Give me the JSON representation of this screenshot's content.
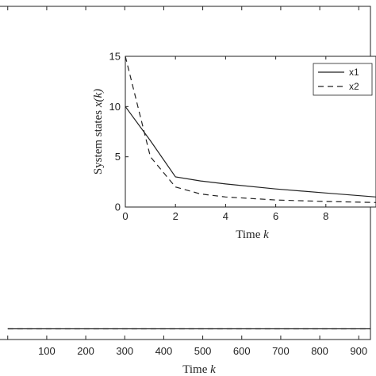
{
  "chart_data": [
    {
      "type": "line",
      "role": "main",
      "xlabel_text": "Time ",
      "xlabel_var": "k",
      "x_ticks": [
        100,
        200,
        300,
        400,
        500,
        600,
        700,
        800,
        900
      ],
      "x_tick_labels": [
        "100",
        "200",
        "300",
        "400",
        "500",
        "600",
        "700",
        "800",
        "900"
      ],
      "xlim": [
        -30,
        930
      ],
      "ylim": [
        -0.5,
        15
      ],
      "series": [
        {
          "x": [
            0,
            50,
            100,
            200,
            400,
            600,
            800,
            930
          ],
          "values": [
            0,
            0,
            0,
            0,
            0,
            0,
            0,
            0
          ],
          "style": "solid"
        },
        {
          "x": [
            0,
            50,
            100,
            200,
            400,
            600,
            800,
            930
          ],
          "values": [
            0,
            0,
            0,
            0,
            0,
            0,
            0,
            0
          ],
          "style": "dashed"
        }
      ]
    },
    {
      "type": "line",
      "role": "inset",
      "xlabel_text": "Time ",
      "xlabel_var": "k",
      "ylabel_text": "System states ",
      "ylabel_var": "x(k)",
      "x_ticks": [
        0,
        2,
        4,
        6,
        8
      ],
      "x_tick_labels": [
        "0",
        "2",
        "4",
        "6",
        "8"
      ],
      "y_ticks": [
        0,
        5,
        10,
        15
      ],
      "y_tick_labels": [
        "0",
        "5",
        "10",
        "15"
      ],
      "xlim": [
        0,
        10
      ],
      "ylim": [
        0,
        15
      ],
      "legend_placement": "top-right",
      "series": [
        {
          "name": "x1",
          "style": "solid",
          "x": [
            0,
            1,
            2,
            3,
            4,
            6,
            8,
            10
          ],
          "values": [
            10,
            6.6,
            3,
            2.6,
            2.3,
            1.8,
            1.4,
            1.0
          ]
        },
        {
          "name": "x2",
          "style": "dashed",
          "x": [
            0,
            1,
            2,
            3,
            4,
            6,
            8,
            10
          ],
          "values": [
            15,
            5,
            2,
            1.3,
            1.0,
            0.7,
            0.55,
            0.45
          ]
        }
      ]
    }
  ]
}
